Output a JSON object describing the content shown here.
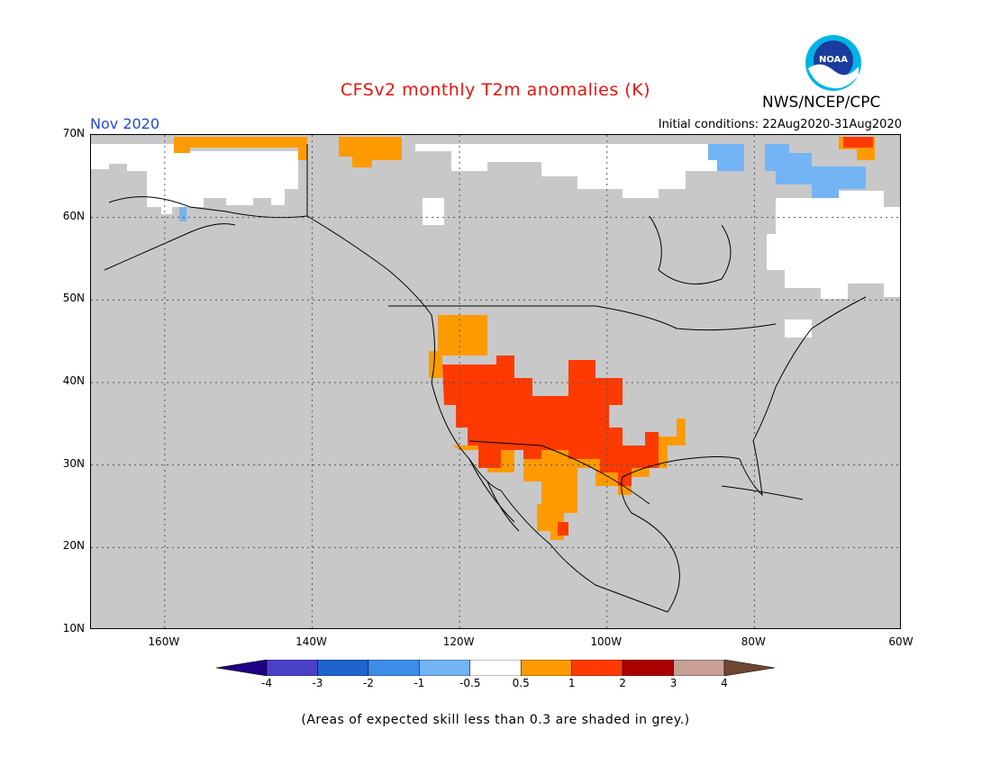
{
  "header": {
    "title": "CFSv2 monthly T2m anomalies (K)",
    "agency": "NWS/NCEP/CPC",
    "logo_text": "NOAA",
    "month": "Nov 2020",
    "initial_conditions": "Initial conditions: 22Aug2020-31Aug2020"
  },
  "map": {
    "lon_range": [
      -170,
      -60
    ],
    "lat_range": [
      10,
      70
    ],
    "lat_labels": [
      "70N",
      "60N",
      "50N",
      "40N",
      "30N",
      "20N",
      "10N"
    ],
    "lon_labels": [
      "160W",
      "140W",
      "120W",
      "100W",
      "80W",
      "60W"
    ],
    "lat_values": [
      70,
      60,
      50,
      40,
      30,
      20,
      10
    ],
    "lon_values": [
      -160,
      -140,
      -120,
      -100,
      -80,
      -60
    ],
    "no_skill_color": "#c8c8c8",
    "regions": [
      {
        "name": "southwest-us",
        "category": "1 to 2",
        "color": "#ff3a00"
      },
      {
        "name": "west-coast-and-texas",
        "category": "0.5 to 1",
        "color": "#ff9b00"
      },
      {
        "name": "northern-alaska",
        "category": "-0.5 to 0.5",
        "color": "#ffffff"
      },
      {
        "name": "northeast-canada",
        "category": "-1 to -0.5",
        "color": "#73b4f5"
      }
    ]
  },
  "colorbar": {
    "labels": [
      "-4",
      "-3",
      "-2",
      "-1",
      "-0.5",
      "0.5",
      "1",
      "2",
      "3",
      "4"
    ],
    "colors": [
      "#1e0082",
      "#4b40c8",
      "#1f63cd",
      "#3d8de8",
      "#73b4f5",
      "#ffffff",
      "#ff9b00",
      "#ff3a00",
      "#aa0000",
      "#c8a096",
      "#6e4632"
    ]
  },
  "footnote": "(Areas of expected skill less than 0.3 are shaded in grey.)"
}
